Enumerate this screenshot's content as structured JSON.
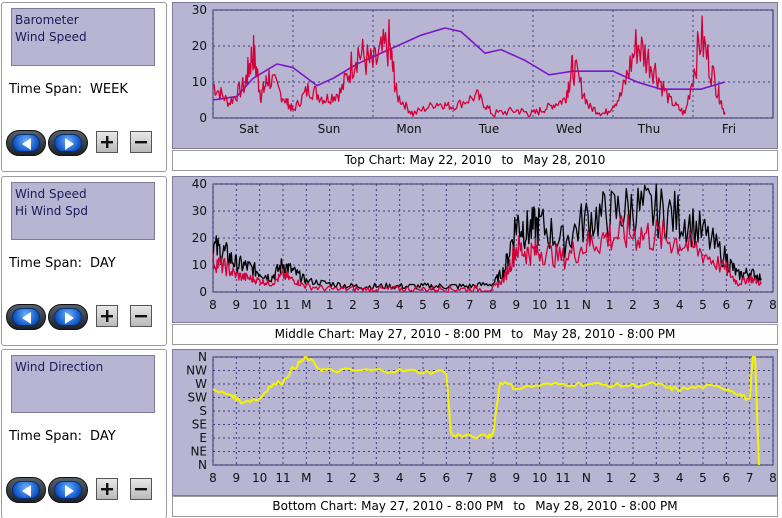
{
  "panels": [
    {
      "series": [
        "Barometer",
        "Wind Speed"
      ],
      "timespan_label": "Time Span:",
      "timespan_value": "WEEK",
      "caption_prefix": "Top Chart:",
      "caption_from": "May 22, 2010",
      "caption_to_word": "to",
      "caption_to": "May 28, 2010"
    },
    {
      "series": [
        "Wind Speed",
        "Hi Wind Spd"
      ],
      "timespan_label": "Time Span:",
      "timespan_value": "DAY",
      "caption_prefix": "Middle Chart:",
      "caption_from": "May 27, 2010 - 8:00 PM",
      "caption_to_word": "to",
      "caption_to": "May 28, 2010 - 8:00 PM"
    },
    {
      "series": [
        "Wind Direction",
        ""
      ],
      "timespan_label": "Time Span:",
      "timespan_value": "DAY",
      "caption_prefix": "Bottom Chart:",
      "caption_from": "May 27, 2010 - 8:00 PM",
      "caption_to_word": "to",
      "caption_to": "May 28, 2010 - 8:00 PM"
    }
  ],
  "buttons": {
    "prev_icon": "arrow-left-icon",
    "next_icon": "arrow-right-icon",
    "zoom_in_icon": "plus-icon",
    "zoom_out_icon": "minus-icon"
  },
  "colors": {
    "panel_bg": "#b7b5d1",
    "grid": "#3f3d80",
    "barometer": "#7a17c9",
    "wind_speed": "#d4003a",
    "hi_wind": "#000000",
    "direction": "#f4f400"
  },
  "chart_data": [
    {
      "type": "line",
      "ylim": [
        0,
        30
      ],
      "y_ticks": [
        "0",
        "10",
        "20",
        "30"
      ],
      "x_labels": [
        "Sat",
        "Sun",
        "Mon",
        "Tue",
        "Wed",
        "Thu",
        "Fri"
      ],
      "series": [
        {
          "name": "Barometer",
          "x": [
            0,
            0.3,
            0.5,
            0.8,
            1.0,
            1.3,
            1.5,
            1.8,
            2.0,
            2.3,
            2.6,
            2.9,
            3.1,
            3.4,
            3.6,
            3.9,
            4.2,
            4.5,
            4.8,
            5.0,
            5.3,
            5.6,
            5.9,
            6.1,
            6.4
          ],
          "values": [
            5,
            6,
            11,
            15,
            14,
            9,
            11,
            15,
            17,
            20,
            23,
            25,
            24,
            18,
            19,
            16,
            12,
            13,
            13,
            13,
            10,
            8,
            8,
            8,
            10
          ]
        },
        {
          "name": "Wind Speed",
          "x": [
            0,
            0.2,
            0.4,
            0.5,
            0.6,
            0.7,
            0.9,
            1.0,
            1.2,
            1.4,
            1.6,
            1.8,
            2.0,
            2.2,
            2.3,
            2.5,
            2.8,
            3.0,
            3.3,
            3.5,
            3.8,
            4.0,
            4.2,
            4.4,
            4.5,
            4.7,
            4.9,
            5.1,
            5.3,
            5.5,
            5.7,
            5.9,
            6.1,
            6.3,
            6.4
          ],
          "values": [
            9,
            4,
            9,
            18,
            6,
            11,
            5,
            2,
            8,
            5,
            7,
            18,
            14,
            20,
            6,
            1,
            4,
            3,
            6,
            1,
            2,
            1,
            3,
            5,
            14,
            3,
            1,
            6,
            20,
            14,
            5,
            1,
            22,
            8,
            1
          ]
        }
      ]
    },
    {
      "type": "line",
      "ylim": [
        0,
        40
      ],
      "y_ticks": [
        "0",
        "10",
        "20",
        "30",
        "40"
      ],
      "x_labels": [
        "8",
        "9",
        "10",
        "11",
        "M",
        "1",
        "2",
        "3",
        "4",
        "5",
        "6",
        "7",
        "8",
        "9",
        "10",
        "11",
        "N",
        "1",
        "2",
        "3",
        "4",
        "5",
        "6",
        "7",
        "8"
      ],
      "series": [
        {
          "name": "Hi Wind Spd",
          "x": [
            0,
            0.5,
            1,
            1.5,
            2,
            2.5,
            3,
            3.5,
            4,
            5,
            6,
            7,
            8,
            9,
            10,
            11,
            12,
            12.5,
            13,
            13.5,
            14,
            15,
            16,
            17,
            18,
            19,
            20,
            21,
            22,
            22.5,
            23,
            23.5
          ],
          "values": [
            16,
            14,
            10,
            9,
            7,
            5,
            10,
            7,
            4,
            3,
            2,
            2,
            2,
            2,
            2,
            2,
            3,
            8,
            25,
            22,
            24,
            18,
            26,
            28,
            30,
            29,
            27,
            21,
            12,
            6,
            7,
            5
          ]
        },
        {
          "name": "Wind Speed",
          "x": [
            0,
            0.5,
            1,
            1.5,
            2,
            2.5,
            3,
            3.5,
            4,
            5,
            6,
            7,
            8,
            9,
            10,
            11,
            12,
            12.5,
            13,
            13.5,
            14,
            15,
            16,
            17,
            18,
            19,
            20,
            21,
            22,
            22.5,
            23,
            23.5
          ],
          "values": [
            11,
            9,
            6,
            5,
            4,
            3,
            6,
            4,
            2,
            1,
            1,
            1,
            1,
            1,
            1,
            1,
            1,
            5,
            16,
            14,
            15,
            12,
            17,
            20,
            21,
            20,
            18,
            14,
            8,
            3,
            5,
            3
          ]
        }
      ]
    },
    {
      "type": "line",
      "y_ticks": [
        "N",
        "NW",
        "W",
        "SW",
        "S",
        "SE",
        "E",
        "NE",
        "N"
      ],
      "ylim": [
        0,
        8
      ],
      "x_labels": [
        "8",
        "9",
        "10",
        "11",
        "M",
        "1",
        "2",
        "3",
        "4",
        "5",
        "6",
        "7",
        "8",
        "9",
        "10",
        "11",
        "N",
        "1",
        "2",
        "3",
        "4",
        "5",
        "6",
        "7",
        "8"
      ],
      "series": [
        {
          "name": "Wind Direction",
          "x": [
            0,
            0.8,
            1.2,
            2.0,
            2.4,
            3.0,
            3.4,
            3.8,
            4.0,
            4.6,
            5.0,
            6.0,
            7.0,
            8.0,
            9.0,
            10.0,
            10.2,
            10.8,
            11.8,
            12.0,
            12.3,
            13.0,
            14.0,
            15.0,
            16.0,
            17.0,
            18.0,
            19.0,
            19.5,
            20.0,
            21.0,
            22.0,
            22.5,
            23.0,
            23.2,
            23.4
          ],
          "values": [
            5.5,
            5.2,
            4.7,
            4.9,
            5.8,
            6.2,
            7.1,
            7.7,
            8.0,
            7.1,
            7.0,
            7.0,
            7.0,
            7.0,
            6.9,
            6.9,
            2.3,
            2.1,
            2.1,
            2.3,
            6.2,
            5.7,
            5.9,
            6.0,
            6.0,
            5.9,
            5.9,
            6.0,
            5.7,
            5.6,
            5.8,
            5.7,
            5.3,
            4.8,
            9.5,
            0
          ]
        }
      ]
    }
  ]
}
